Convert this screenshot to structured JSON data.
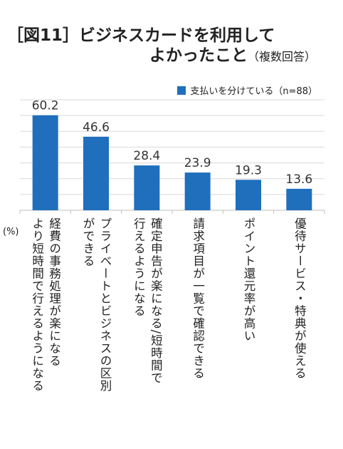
{
  "title_line1": "［図11］ビジネスカードを利用して",
  "title_line2": "よかったこと",
  "title_sub": "（複数回答）",
  "legend_label": "支払いを分けている（n=88）",
  "unit_label": "(%)",
  "colors": {
    "bar": "#1f6fbd",
    "grid": "#d9d9d9",
    "axis": "#bfbfbf"
  },
  "chart_data": {
    "type": "bar",
    "title": "［図11］ビジネスカードを利用してよかったこと（複数回答）",
    "categories": [
      "経費の事務処理が楽になる\nより短時間で行えるようになる",
      "プライベートとビジネスの区別\nができる",
      "確定申告が楽になる/短時間で\n行えるようになる",
      "請求項目が一覧で確認できる",
      "ポイント還元率が高い",
      "優待サービス・特典が使える"
    ],
    "value_labels": [
      "60.2",
      "46.6",
      "28.4",
      "23.9",
      "19.3",
      "13.6"
    ],
    "series": [
      {
        "name": "支払いを分けている（n=88）",
        "values": [
          60.2,
          46.6,
          28.4,
          23.9,
          19.3,
          13.6
        ]
      }
    ],
    "ylabel": "(%)",
    "ylim": [
      0,
      70
    ],
    "gridlines": [
      0,
      10,
      20,
      30,
      40,
      50,
      60,
      70
    ],
    "grid": true,
    "legend_position": "top-right"
  }
}
